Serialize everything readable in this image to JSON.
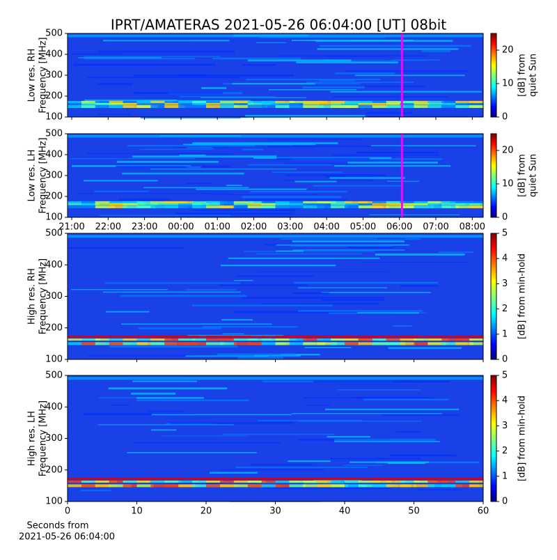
{
  "chart_data": [
    {
      "type": "spectrogram",
      "title": "IPRT/AMATERAS 2021-05-26 06:04:00 [UT]   08bit",
      "ylabel": [
        "Low res. RH",
        "Frequency [MHz]"
      ],
      "ylim": [
        100,
        500
      ],
      "yticks": [
        100,
        200,
        300,
        400,
        500
      ],
      "xlim": [
        20.885,
        32.3
      ],
      "xticks": [
        21,
        22,
        23,
        24,
        25,
        26,
        27,
        28,
        29,
        30,
        31,
        32
      ],
      "marker_x": 30.07,
      "marker_color": "#ff00ff",
      "colorbar_label": [
        "[dB] from",
        "quiet Sun"
      ],
      "clim": [
        0,
        25
      ],
      "cticks": [
        0,
        10,
        20
      ]
    },
    {
      "type": "spectrogram",
      "ylabel": [
        "Low res. LH",
        "Frequency [MHz]"
      ],
      "ylim": [
        100,
        500
      ],
      "yticks": [
        100,
        200,
        300,
        400,
        500
      ],
      "xlim": [
        20.885,
        32.3
      ],
      "xticks": [
        {
          "value": 21,
          "label": "21:00"
        },
        {
          "value": 22,
          "label": "22:00"
        },
        {
          "value": 23,
          "label": "23:00"
        },
        {
          "value": 24,
          "label": "00:00"
        },
        {
          "value": 25,
          "label": "01:00"
        },
        {
          "value": 26,
          "label": "02:00"
        },
        {
          "value": 27,
          "label": "03:00"
        },
        {
          "value": 28,
          "label": "04:00"
        },
        {
          "value": 29,
          "label": "05:00"
        },
        {
          "value": 30,
          "label": "06:00"
        },
        {
          "value": 31,
          "label": "07:00"
        },
        {
          "value": 32,
          "label": "08:00"
        }
      ],
      "marker_x": 30.07,
      "marker_color": "#ff00ff",
      "colorbar_label": [
        "[dB] from",
        "quiet Sun"
      ],
      "clim": [
        0,
        25
      ],
      "cticks": [
        0,
        10,
        20
      ]
    },
    {
      "type": "spectrogram",
      "ylabel": [
        "High res. RH",
        "Frequency [MHz]"
      ],
      "ylim": [
        100,
        500
      ],
      "yticks": [
        100,
        200,
        300,
        400,
        500
      ],
      "xlim": [
        0,
        60
      ],
      "xticks": [
        0,
        10,
        20,
        30,
        40,
        50,
        60
      ],
      "colorbar_label": [
        "[dB] from min-hold"
      ],
      "clim": [
        0,
        5
      ],
      "cticks": [
        0,
        1,
        2,
        3,
        4,
        5
      ]
    },
    {
      "type": "spectrogram",
      "ylabel": [
        "High res. LH",
        "Frequency [MHz]"
      ],
      "ylim": [
        100,
        500
      ],
      "yticks": [
        100,
        200,
        300,
        400,
        500
      ],
      "xlim": [
        0,
        60
      ],
      "xticks": [
        {
          "value": 0,
          "label": "0"
        },
        {
          "value": 10,
          "label": "10"
        },
        {
          "value": 20,
          "label": "20"
        },
        {
          "value": 30,
          "label": "30"
        },
        {
          "value": 40,
          "label": "40"
        },
        {
          "value": 50,
          "label": "50"
        },
        {
          "value": 60,
          "label": "60"
        }
      ],
      "xlabel": [
        "Seconds from",
        "2021-05-26 06:04:00"
      ],
      "colorbar_label": [
        "[dB] from min-hold"
      ],
      "clim": [
        0,
        5
      ],
      "cticks": [
        0,
        1,
        2,
        3,
        4,
        5
      ]
    }
  ]
}
